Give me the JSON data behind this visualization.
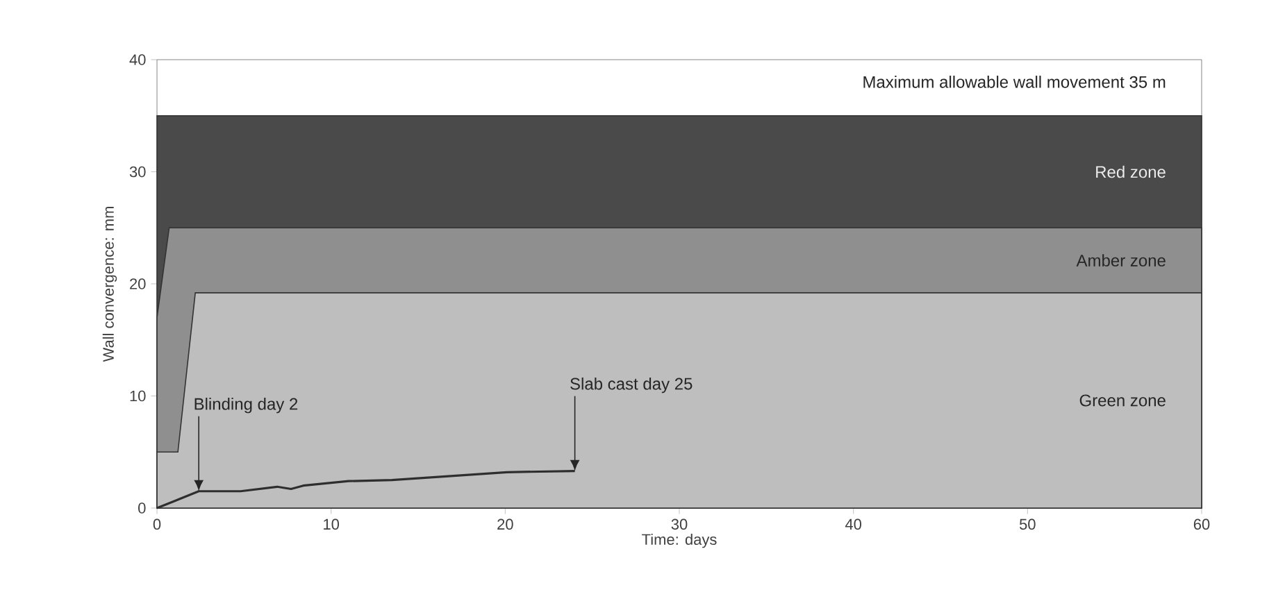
{
  "chart_data": {
    "type": "area",
    "xlabel": "Time: days",
    "ylabel": "Wall convergence: mm",
    "xlim": [
      0,
      60
    ],
    "ylim": [
      0,
      40
    ],
    "xticks": [
      0,
      10,
      20,
      30,
      40,
      50,
      60
    ],
    "yticks": [
      0,
      10,
      20,
      30,
      40
    ],
    "grid": false,
    "series": [
      {
        "name": "Red zone",
        "color": "#4a4a4a",
        "x": [
          0,
          60
        ],
        "values": [
          35,
          35
        ]
      },
      {
        "name": "Amber zone",
        "color": "#8f8f8f",
        "x": [
          0,
          0.7,
          60
        ],
        "values": [
          17,
          25,
          25
        ]
      },
      {
        "name": "Green zone",
        "color": "#bebebe",
        "x": [
          0,
          1.2,
          2.2,
          60
        ],
        "values": [
          5,
          5,
          19.2,
          19.2
        ]
      },
      {
        "type": "line",
        "color": "#2e2e2e",
        "x": [
          0,
          2.4,
          4.8,
          6.9,
          7.7,
          8.4,
          11,
          13.5,
          20.1,
          24
        ],
        "values": [
          0,
          1.5,
          1.5,
          1.9,
          1.7,
          2.0,
          2.4,
          2.5,
          3.2,
          3.3
        ]
      }
    ],
    "annotations": [
      "Maximum allowable wall movement 35 m",
      {
        "text": "Blinding day 2",
        "x": 2.4,
        "y": 1.5
      },
      {
        "text": "Slab cast day 25",
        "x": 24,
        "y": 3.3
      }
    ]
  }
}
